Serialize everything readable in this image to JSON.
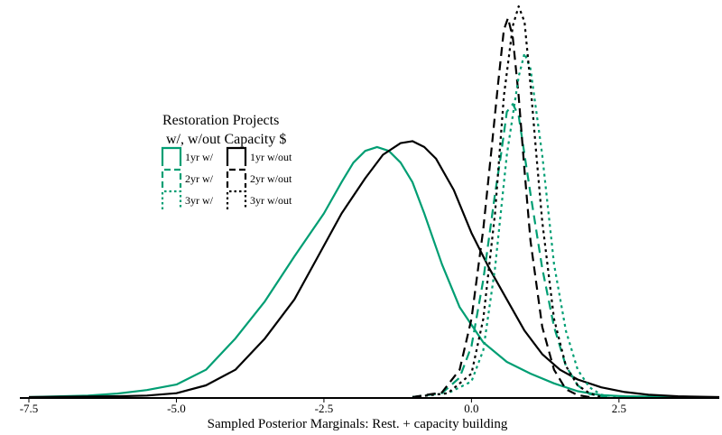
{
  "colors": {
    "with_capacity": "#009e73",
    "without_capacity": "#000000"
  },
  "chart_data": {
    "type": "line",
    "title": "",
    "xlabel": "Sampled Posterior Marginals: Rest. + capacity building",
    "ylabel": "",
    "xlim": [
      -7.5,
      4.2
    ],
    "ylim": [
      0,
      1.0
    ],
    "xticks": [
      -7.5,
      -5.0,
      -2.5,
      0.0,
      2.5
    ],
    "xtick_labels": [
      "-7.5",
      "-5.0",
      "-2.5",
      "0.0",
      "2.5"
    ],
    "grid": false,
    "legend": {
      "title_line1": "Restoration Projects",
      "title_line2": "w/, w/out Capacity $",
      "placement": "upper-left",
      "entries": [
        {
          "label": "1yr w/",
          "series": 0
        },
        {
          "label": "1yr w/out",
          "series": 1
        },
        {
          "label": "2yr w/",
          "series": 2
        },
        {
          "label": "2yr w/out",
          "series": 3
        },
        {
          "label": "3yr w/",
          "series": 4
        },
        {
          "label": "3yr w/out",
          "series": 5
        }
      ]
    },
    "series": [
      {
        "name": "1yr w/",
        "color": "#009e73",
        "dash": "solid",
        "points": [
          [
            -7.5,
            0
          ],
          [
            -6.5,
            0.004
          ],
          [
            -6.0,
            0.009
          ],
          [
            -5.5,
            0.018
          ],
          [
            -5.0,
            0.032
          ],
          [
            -4.5,
            0.07
          ],
          [
            -4.0,
            0.15
          ],
          [
            -3.5,
            0.245
          ],
          [
            -3.0,
            0.36
          ],
          [
            -2.5,
            0.47
          ],
          [
            -2.2,
            0.55
          ],
          [
            -2.0,
            0.6
          ],
          [
            -1.8,
            0.63
          ],
          [
            -1.6,
            0.64
          ],
          [
            -1.4,
            0.63
          ],
          [
            -1.2,
            0.6
          ],
          [
            -1.0,
            0.55
          ],
          [
            -0.8,
            0.47
          ],
          [
            -0.5,
            0.34
          ],
          [
            -0.2,
            0.23
          ],
          [
            0.2,
            0.14
          ],
          [
            0.6,
            0.09
          ],
          [
            1.0,
            0.06
          ],
          [
            1.4,
            0.035
          ],
          [
            1.8,
            0.015
          ],
          [
            2.2,
            0.005
          ],
          [
            2.6,
            0.002
          ],
          [
            3.5,
            0
          ]
        ]
      },
      {
        "name": "1yr w/out",
        "color": "#000000",
        "dash": "solid",
        "points": [
          [
            -7.5,
            0
          ],
          [
            -6.0,
            0.002
          ],
          [
            -5.5,
            0.004
          ],
          [
            -5.0,
            0.01
          ],
          [
            -4.5,
            0.03
          ],
          [
            -4.0,
            0.07
          ],
          [
            -3.5,
            0.15
          ],
          [
            -3.0,
            0.25
          ],
          [
            -2.6,
            0.36
          ],
          [
            -2.2,
            0.47
          ],
          [
            -1.8,
            0.56
          ],
          [
            -1.5,
            0.62
          ],
          [
            -1.2,
            0.65
          ],
          [
            -1.0,
            0.655
          ],
          [
            -0.8,
            0.64
          ],
          [
            -0.6,
            0.61
          ],
          [
            -0.3,
            0.53
          ],
          [
            0.0,
            0.42
          ],
          [
            0.3,
            0.33
          ],
          [
            0.6,
            0.25
          ],
          [
            0.9,
            0.17
          ],
          [
            1.2,
            0.11
          ],
          [
            1.5,
            0.07
          ],
          [
            1.8,
            0.045
          ],
          [
            2.2,
            0.025
          ],
          [
            2.6,
            0.013
          ],
          [
            3.0,
            0.006
          ],
          [
            3.5,
            0.002
          ],
          [
            4.2,
            0
          ]
        ]
      },
      {
        "name": "2yr w/",
        "color": "#009e73",
        "dash": "dashed",
        "points": [
          [
            -1.0,
            0
          ],
          [
            -0.5,
            0.01
          ],
          [
            -0.2,
            0.05
          ],
          [
            0.0,
            0.13
          ],
          [
            0.2,
            0.3
          ],
          [
            0.4,
            0.52
          ],
          [
            0.5,
            0.62
          ],
          [
            0.6,
            0.73
          ],
          [
            0.7,
            0.75
          ],
          [
            0.8,
            0.72
          ],
          [
            0.9,
            0.62
          ],
          [
            1.0,
            0.52
          ],
          [
            1.2,
            0.33
          ],
          [
            1.4,
            0.18
          ],
          [
            1.6,
            0.08
          ],
          [
            1.8,
            0.03
          ],
          [
            2.0,
            0.008
          ],
          [
            2.3,
            0
          ]
        ]
      },
      {
        "name": "2yr w/out",
        "color": "#000000",
        "dash": "dashed",
        "points": [
          [
            -1.0,
            0
          ],
          [
            -0.5,
            0.012
          ],
          [
            -0.2,
            0.07
          ],
          [
            0.0,
            0.2
          ],
          [
            0.2,
            0.43
          ],
          [
            0.35,
            0.65
          ],
          [
            0.45,
            0.8
          ],
          [
            0.55,
            0.94
          ],
          [
            0.62,
            0.97
          ],
          [
            0.7,
            0.92
          ],
          [
            0.8,
            0.77
          ],
          [
            0.9,
            0.58
          ],
          [
            1.0,
            0.4
          ],
          [
            1.2,
            0.18
          ],
          [
            1.4,
            0.07
          ],
          [
            1.6,
            0.02
          ],
          [
            1.8,
            0.005
          ],
          [
            2.0,
            0
          ]
        ]
      },
      {
        "name": "3yr w/",
        "color": "#009e73",
        "dash": "dotted",
        "points": [
          [
            -1.0,
            0
          ],
          [
            -0.4,
            0.01
          ],
          [
            0.0,
            0.04
          ],
          [
            0.2,
            0.12
          ],
          [
            0.4,
            0.33
          ],
          [
            0.6,
            0.62
          ],
          [
            0.8,
            0.82
          ],
          [
            0.9,
            0.88
          ],
          [
            1.0,
            0.84
          ],
          [
            1.2,
            0.62
          ],
          [
            1.4,
            0.34
          ],
          [
            1.6,
            0.17
          ],
          [
            1.8,
            0.07
          ],
          [
            2.0,
            0.025
          ],
          [
            2.2,
            0.006
          ],
          [
            2.5,
            0
          ]
        ]
      },
      {
        "name": "3yr w/out",
        "color": "#000000",
        "dash": "dotted",
        "points": [
          [
            -1.0,
            0
          ],
          [
            -0.4,
            0.01
          ],
          [
            0.0,
            0.06
          ],
          [
            0.2,
            0.2
          ],
          [
            0.4,
            0.47
          ],
          [
            0.55,
            0.77
          ],
          [
            0.7,
            0.95
          ],
          [
            0.8,
            1.0
          ],
          [
            0.9,
            0.96
          ],
          [
            1.0,
            0.8
          ],
          [
            1.1,
            0.62
          ],
          [
            1.2,
            0.45
          ],
          [
            1.4,
            0.2
          ],
          [
            1.6,
            0.08
          ],
          [
            1.8,
            0.03
          ],
          [
            2.0,
            0.01
          ],
          [
            2.2,
            0
          ]
        ]
      }
    ]
  }
}
